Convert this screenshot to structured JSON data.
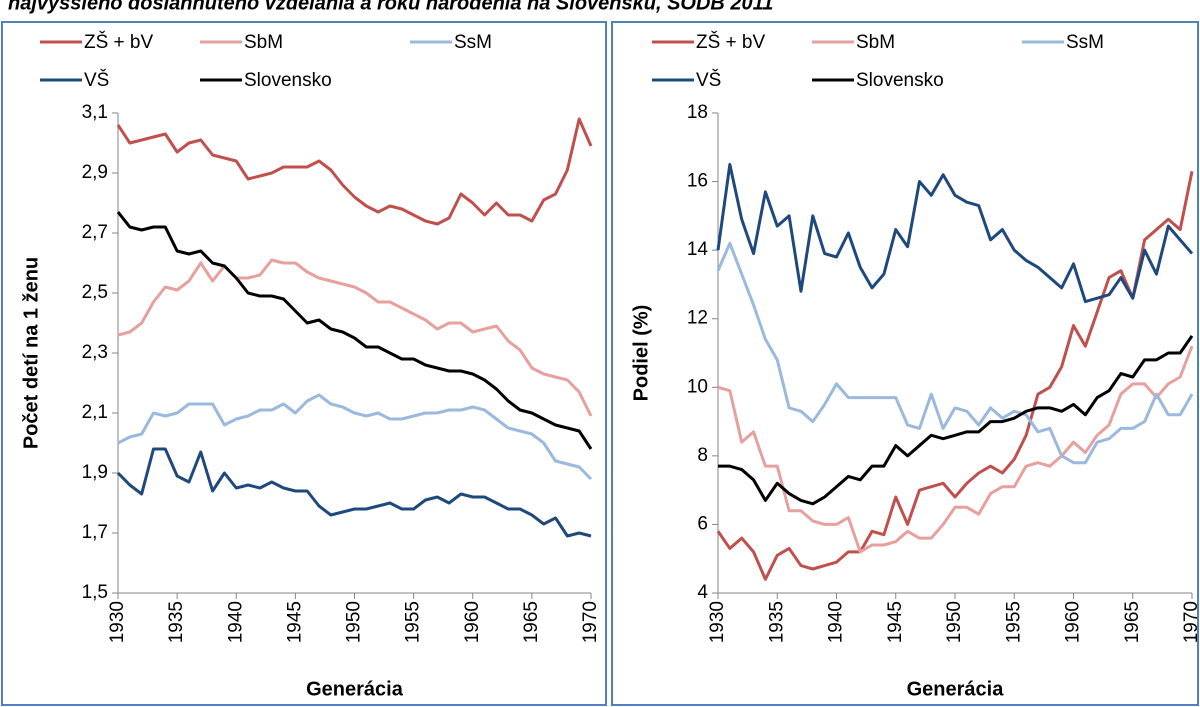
{
  "title": "najvyššieho dosiahnutého vzdelania a roku narodenia na Slovensku, SODB 2011",
  "chart_data": [
    {
      "type": "line",
      "x_label": "Generácia",
      "y_label": "Počet detí na 1 ženu",
      "x": [
        1930,
        1931,
        1932,
        1933,
        1934,
        1935,
        1936,
        1937,
        1938,
        1939,
        1940,
        1941,
        1942,
        1943,
        1944,
        1945,
        1946,
        1947,
        1948,
        1949,
        1950,
        1951,
        1952,
        1953,
        1954,
        1955,
        1956,
        1957,
        1958,
        1959,
        1960,
        1961,
        1962,
        1963,
        1964,
        1965,
        1966,
        1967,
        1968,
        1969,
        1970
      ],
      "xlim": [
        1930,
        1970
      ],
      "xticks": [
        1930,
        1935,
        1940,
        1945,
        1950,
        1955,
        1960,
        1965,
        1970
      ],
      "ylim": [
        1.5,
        3.1
      ],
      "yticks": [
        {
          "value": 1.5,
          "label": "1,5"
        },
        {
          "value": 1.7,
          "label": "1,7"
        },
        {
          "value": 1.9,
          "label": "1,9"
        },
        {
          "value": 2.1,
          "label": "2,1"
        },
        {
          "value": 2.3,
          "label": "2,3"
        },
        {
          "value": 2.5,
          "label": "2,5"
        },
        {
          "value": 2.7,
          "label": "2,7"
        },
        {
          "value": 2.9,
          "label": "2,9"
        },
        {
          "value": 3.1,
          "label": "3,1"
        }
      ],
      "series": [
        {
          "name": "ZŠ + bV",
          "color": "#c0504d",
          "values": [
            3.06,
            3.0,
            3.01,
            3.02,
            3.03,
            2.97,
            3.0,
            3.01,
            2.96,
            2.95,
            2.94,
            2.88,
            2.89,
            2.9,
            2.92,
            2.92,
            2.92,
            2.94,
            2.91,
            2.86,
            2.82,
            2.79,
            2.77,
            2.79,
            2.78,
            2.76,
            2.74,
            2.73,
            2.75,
            2.83,
            2.8,
            2.76,
            2.8,
            2.76,
            2.76,
            2.74,
            2.81,
            2.83,
            2.91,
            3.08,
            2.99
          ]
        },
        {
          "name": "SbM",
          "color": "#e6a09e",
          "values": [
            2.36,
            2.37,
            2.4,
            2.47,
            2.52,
            2.51,
            2.54,
            2.6,
            2.54,
            2.59,
            2.55,
            2.55,
            2.56,
            2.61,
            2.6,
            2.6,
            2.57,
            2.55,
            2.54,
            2.53,
            2.52,
            2.5,
            2.47,
            2.47,
            2.45,
            2.43,
            2.41,
            2.38,
            2.4,
            2.4,
            2.37,
            2.38,
            2.39,
            2.34,
            2.31,
            2.25,
            2.23,
            2.22,
            2.21,
            2.17,
            2.09
          ]
        },
        {
          "name": "SsM",
          "color": "#9bb8de",
          "values": [
            2.0,
            2.02,
            2.03,
            2.1,
            2.09,
            2.1,
            2.13,
            2.13,
            2.13,
            2.06,
            2.08,
            2.09,
            2.11,
            2.11,
            2.13,
            2.1,
            2.14,
            2.16,
            2.13,
            2.12,
            2.1,
            2.09,
            2.1,
            2.08,
            2.08,
            2.09,
            2.1,
            2.1,
            2.11,
            2.11,
            2.12,
            2.11,
            2.08,
            2.05,
            2.04,
            2.03,
            2.0,
            1.94,
            1.93,
            1.92,
            1.88
          ]
        },
        {
          "name": "VŠ",
          "color": "#1f497d",
          "values": [
            1.9,
            1.86,
            1.83,
            1.98,
            1.98,
            1.89,
            1.87,
            1.97,
            1.84,
            1.9,
            1.85,
            1.86,
            1.85,
            1.87,
            1.85,
            1.84,
            1.84,
            1.79,
            1.76,
            1.77,
            1.78,
            1.78,
            1.79,
            1.8,
            1.78,
            1.78,
            1.81,
            1.82,
            1.8,
            1.83,
            1.82,
            1.82,
            1.8,
            1.78,
            1.78,
            1.76,
            1.73,
            1.75,
            1.69,
            1.7,
            1.69
          ]
        },
        {
          "name": "Slovensko",
          "color": "#000000",
          "values": [
            2.77,
            2.72,
            2.71,
            2.72,
            2.72,
            2.64,
            2.63,
            2.64,
            2.6,
            2.59,
            2.55,
            2.5,
            2.49,
            2.49,
            2.48,
            2.44,
            2.4,
            2.41,
            2.38,
            2.37,
            2.35,
            2.32,
            2.32,
            2.3,
            2.28,
            2.28,
            2.26,
            2.25,
            2.24,
            2.24,
            2.23,
            2.21,
            2.18,
            2.14,
            2.11,
            2.1,
            2.08,
            2.06,
            2.05,
            2.04,
            1.98
          ]
        }
      ]
    },
    {
      "type": "line",
      "x_label": "Generácia",
      "y_label": "Podiel (%)",
      "x": [
        1930,
        1931,
        1932,
        1933,
        1934,
        1935,
        1936,
        1937,
        1938,
        1939,
        1940,
        1941,
        1942,
        1943,
        1944,
        1945,
        1946,
        1947,
        1948,
        1949,
        1950,
        1951,
        1952,
        1953,
        1954,
        1955,
        1956,
        1957,
        1958,
        1959,
        1960,
        1961,
        1962,
        1963,
        1964,
        1965,
        1966,
        1967,
        1968,
        1969,
        1970
      ],
      "xlim": [
        1930,
        1970
      ],
      "xticks": [
        1930,
        1935,
        1940,
        1945,
        1950,
        1955,
        1960,
        1965,
        1970
      ],
      "ylim": [
        4,
        18
      ],
      "yticks": [
        4,
        6,
        8,
        10,
        12,
        14,
        16,
        18
      ],
      "series": [
        {
          "name": "ZŠ + bV",
          "color": "#c0504d",
          "values": [
            5.8,
            5.3,
            5.6,
            5.2,
            4.4,
            5.1,
            5.3,
            4.8,
            4.7,
            4.8,
            4.9,
            5.2,
            5.2,
            5.8,
            5.7,
            6.8,
            6.0,
            7.0,
            7.1,
            7.2,
            6.8,
            7.2,
            7.5,
            7.7,
            7.5,
            7.9,
            8.6,
            9.8,
            10.0,
            10.6,
            11.8,
            11.2,
            12.2,
            13.2,
            13.4,
            12.6,
            14.3,
            14.6,
            14.9,
            14.6,
            16.3
          ]
        },
        {
          "name": "SbM",
          "color": "#e6a09e",
          "values": [
            10.0,
            9.9,
            8.4,
            8.7,
            7.7,
            7.7,
            6.4,
            6.4,
            6.1,
            6.0,
            6.0,
            6.2,
            5.2,
            5.4,
            5.4,
            5.5,
            5.8,
            5.6,
            5.6,
            6.0,
            6.5,
            6.5,
            6.3,
            6.9,
            7.1,
            7.1,
            7.7,
            7.8,
            7.7,
            8.0,
            8.4,
            8.1,
            8.6,
            8.9,
            9.8,
            10.1,
            10.1,
            9.7,
            10.1,
            10.3,
            11.2
          ]
        },
        {
          "name": "SsM",
          "color": "#9bb8de",
          "values": [
            13.4,
            14.2,
            13.3,
            12.4,
            11.4,
            10.8,
            9.4,
            9.3,
            9.0,
            9.5,
            10.1,
            9.7,
            9.7,
            9.7,
            9.7,
            9.7,
            8.9,
            8.8,
            9.8,
            8.8,
            9.4,
            9.3,
            8.9,
            9.4,
            9.1,
            9.3,
            9.2,
            8.7,
            8.8,
            8.0,
            7.8,
            7.8,
            8.4,
            8.5,
            8.8,
            8.8,
            9.0,
            9.8,
            9.2,
            9.2,
            9.8
          ]
        },
        {
          "name": "VŠ",
          "color": "#1f497d",
          "values": [
            14.0,
            16.5,
            14.9,
            13.9,
            15.7,
            14.7,
            15.0,
            12.8,
            15.0,
            13.9,
            13.8,
            14.5,
            13.5,
            12.9,
            13.3,
            14.6,
            14.1,
            16.0,
            15.6,
            16.2,
            15.6,
            15.4,
            15.3,
            14.3,
            14.6,
            14.0,
            13.7,
            13.5,
            13.2,
            12.9,
            13.6,
            12.5,
            12.6,
            12.7,
            13.2,
            12.6,
            14.0,
            13.3,
            14.7,
            14.3,
            13.9
          ]
        },
        {
          "name": "Slovensko",
          "color": "#000000",
          "values": [
            7.7,
            7.7,
            7.6,
            7.3,
            6.7,
            7.2,
            6.9,
            6.7,
            6.6,
            6.8,
            7.1,
            7.4,
            7.3,
            7.7,
            7.7,
            8.3,
            8.0,
            8.3,
            8.6,
            8.5,
            8.6,
            8.7,
            8.7,
            9.0,
            9.0,
            9.1,
            9.3,
            9.4,
            9.4,
            9.3,
            9.5,
            9.2,
            9.7,
            9.9,
            10.4,
            10.3,
            10.8,
            10.8,
            11.0,
            11.0,
            11.5
          ]
        }
      ]
    }
  ]
}
